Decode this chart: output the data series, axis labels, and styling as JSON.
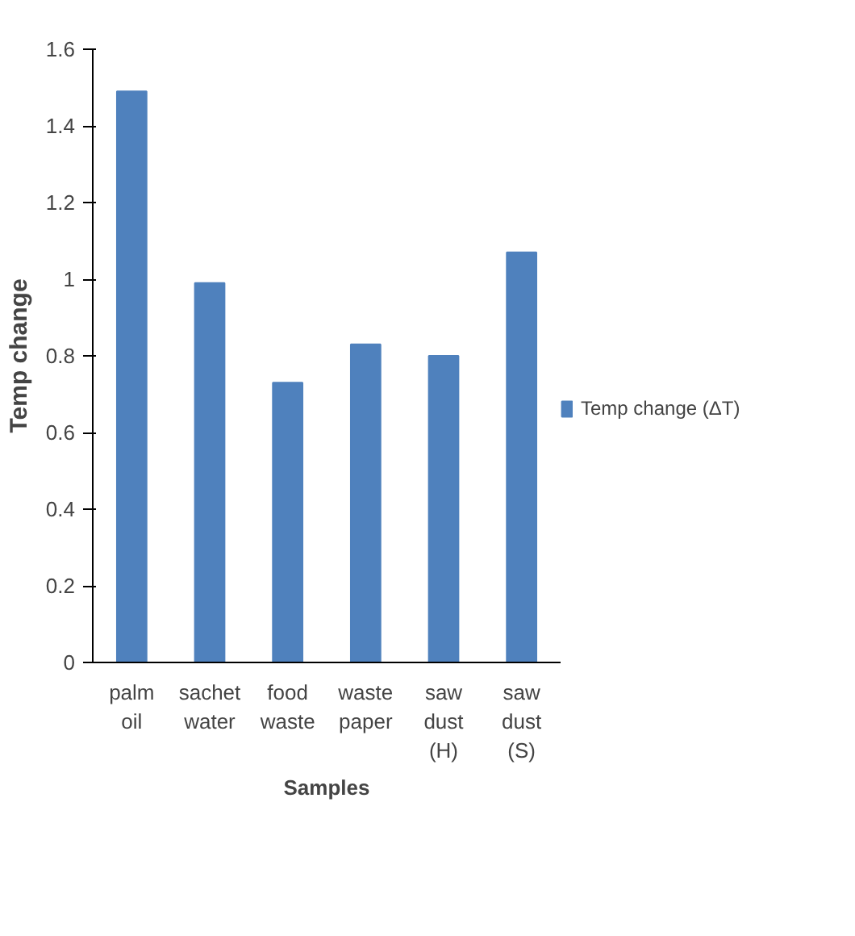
{
  "chart_data": {
    "type": "bar",
    "xlabel": "Samples",
    "ylabel": "Temp change",
    "categories": [
      "palm oil",
      "sachet water",
      "food waste",
      "waste paper",
      "saw dust (H)",
      "saw dust (S)"
    ],
    "series": [
      {
        "name": "Temp change (ΔT)",
        "color": "#4f81bd",
        "values": [
          1.49,
          0.99,
          0.73,
          0.83,
          0.8,
          1.07
        ]
      }
    ],
    "ylim": [
      0,
      1.6
    ],
    "yticks": [
      0,
      0.2,
      0.4,
      0.6,
      0.8,
      1,
      1.2,
      1.4,
      1.6
    ],
    "grid": false,
    "legend": "right"
  }
}
